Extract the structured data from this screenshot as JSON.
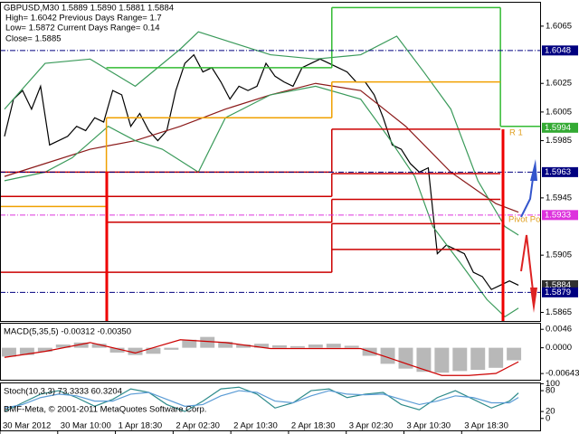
{
  "chart_data": [
    {
      "type": "line",
      "title": "GBPUSD,M30  1.5889 1.5890 1.5881 1.5884",
      "info": [
        "High= 1.6042   Previous Days Range= 1.7",
        "Low= 1.5872   Current Days Range= 0.14",
        "Close= 1.5885"
      ],
      "annotations": [
        "R 1",
        "Pivot Po"
      ],
      "xlim": [
        0,
        60
      ],
      "ylim": [
        1.5859,
        1.6082
      ],
      "yticks": [
        1.6065,
        1.6025,
        1.6005,
        1.5985,
        1.5945,
        1.5905,
        1.5865
      ],
      "series": [
        {
          "color": "#000000",
          "x": [
            0.5,
            1.5,
            2.5,
            3.5,
            4.5,
            5.5,
            6.5,
            7.5,
            8.5,
            9.5,
            10.5,
            11.5,
            12.5,
            13.5,
            14.5,
            15.5,
            16.5,
            17.5,
            18.5,
            19.5,
            20.5,
            21.5,
            22.5,
            23.5,
            24.5,
            25.5,
            26.5,
            27.5,
            28.5,
            29.5,
            30.5,
            31.5,
            32.5,
            33.5,
            34.5,
            35.5,
            36.5,
            37.5,
            38.5,
            39.5,
            40.5,
            41.5,
            42.5,
            43.5,
            44.5,
            45.5,
            46.5,
            47.5,
            48.5,
            49.5,
            50.5,
            51.5,
            52.5,
            53.5,
            54.5,
            55.5,
            56.5,
            57.5
          ],
          "values": [
            1.5988,
            1.6014,
            1.602,
            1.6007,
            1.6023,
            1.5982,
            1.5985,
            1.5988,
            1.5995,
            1.5992,
            1.6001,
            1.5998,
            1.602,
            1.6017,
            1.5995,
            1.6004,
            1.5992,
            1.5985,
            1.5992,
            1.602,
            1.6039,
            1.6045,
            1.6033,
            1.6036,
            1.6026,
            1.6014,
            1.6023,
            1.602,
            1.6023,
            1.6039,
            1.603,
            1.6026,
            1.6023,
            1.6036,
            1.6039,
            1.6042,
            1.6039,
            1.6036,
            1.6033,
            1.6026,
            1.6026,
            1.6017,
            1.6001,
            1.5982,
            1.5979,
            1.5969,
            1.5963,
            1.5966,
            1.5906,
            1.5912,
            1.5909,
            1.5906,
            1.5893,
            1.589,
            1.5881,
            1.5884,
            1.5887,
            1.5884
          ]
        },
        {
          "color": "#8b1a1a",
          "x": [
            0.5,
            5,
            10,
            15,
            20,
            25,
            30,
            35,
            40,
            45,
            50,
            55,
            57.5
          ],
          "values": [
            1.596,
            1.5969,
            1.5979,
            1.5985,
            1.5995,
            1.6007,
            1.6017,
            1.6025,
            1.602,
            1.5995,
            1.5963,
            1.5941,
            1.5935
          ]
        },
        {
          "color": "#3a9a5a",
          "x": [
            0.5,
            5,
            10,
            15,
            20,
            22,
            25,
            30,
            35,
            40,
            44,
            47,
            50,
            53,
            56,
            57.5
          ],
          "values": [
            1.6007,
            1.6039,
            1.6042,
            1.6023,
            1.6049,
            1.6061,
            1.6055,
            1.6045,
            1.6042,
            1.6045,
            1.6058,
            1.6033,
            1.6007,
            1.5957,
            1.5925,
            1.5919
          ]
        },
        {
          "color": "#3a9a5a",
          "x": [
            0.5,
            5,
            8,
            12,
            15,
            18,
            22,
            25,
            30,
            35,
            40,
            43,
            46,
            48,
            51,
            54,
            56,
            57.5
          ],
          "values": [
            1.5957,
            1.5963,
            1.5973,
            1.5995,
            1.5985,
            1.5979,
            1.5963,
            1.6001,
            1.6017,
            1.6023,
            1.6014,
            1.5988,
            1.596,
            1.5925,
            1.59,
            1.5874,
            1.5862,
            1.5868
          ]
        },
        {
          "step": true,
          "color": "#33bb33",
          "x": [
            0,
            11.8,
            36.8,
            55.5
          ],
          "values": [
            null,
            1.6036,
            1.6078,
            1.5995
          ]
        },
        {
          "step": true,
          "color": "#f0a000",
          "x": [
            0,
            11.8,
            36.8,
            55.5
          ],
          "values": [
            1.5939,
            1.6001,
            1.6026,
            null
          ]
        },
        {
          "step": true,
          "color": "#cc0000",
          "x": [
            0,
            11.8,
            36.8,
            55.5
          ],
          "values": [
            1.5963,
            1.5963,
            1.5993,
            null
          ]
        },
        {
          "step": true,
          "color": "#cc0000",
          "x": [
            0,
            11.8,
            36.8,
            55.5
          ],
          "values": [
            1.5946,
            1.5946,
            1.5962,
            null
          ]
        },
        {
          "step": true,
          "color": "#cc0000",
          "x": [
            0,
            11.8,
            36.8,
            55.5
          ],
          "values": [
            null,
            1.5928,
            1.5944,
            null
          ]
        },
        {
          "step": true,
          "color": "#cc0000",
          "x": [
            0,
            11.8,
            36.8,
            55.5
          ],
          "values": [
            1.5893,
            1.5893,
            1.5927,
            null
          ]
        },
        {
          "step": true,
          "color": "#cc0000",
          "x": [
            0,
            11.8,
            36.8,
            55.5
          ],
          "values": [
            null,
            null,
            1.5909,
            null
          ]
        }
      ],
      "price_labels": [
        {
          "value": 1.6048,
          "color": "#000080",
          "line": true
        },
        {
          "value": 1.5994,
          "color": "#33aa33",
          "line": false
        },
        {
          "value": 1.5963,
          "color": "#000080",
          "line": true
        },
        {
          "value": 1.5933,
          "color": "#dd33dd",
          "line": true
        },
        {
          "value": 1.5884,
          "color": "#303030",
          "line": false
        },
        {
          "value": 1.5879,
          "color": "#000080",
          "line": true
        }
      ]
    },
    {
      "type": "bar",
      "title": "MACD(5,35,5) -0.00312 -0.00350",
      "xlim": [
        0,
        60
      ],
      "ylim": [
        -0.0082,
        0.006
      ],
      "yticks": [
        0.0046,
        {
          "value": 0,
          "label": "0.0000"
        },
        -0.00643
      ],
      "series": [
        {
          "type": "bar",
          "color": "#b8b8b8",
          "x": [
            1,
            3,
            5,
            7,
            9,
            11,
            13,
            15,
            17,
            19,
            21,
            23,
            25,
            27,
            29,
            31,
            33,
            35,
            37,
            39,
            41,
            43,
            45,
            47,
            49,
            51,
            53,
            55,
            57
          ],
          "values": [
            -0.0022,
            -0.0018,
            -0.001,
            0.0008,
            0.0013,
            0.001,
            -0.0012,
            -0.0018,
            -0.0015,
            -0.0005,
            0.002,
            0.0027,
            0.0015,
            0.0008,
            0.001,
            0.0006,
            0.0004,
            0.0008,
            0.001,
            0.0005,
            -0.002,
            -0.004,
            -0.0052,
            -0.006,
            -0.0062,
            -0.0058,
            -0.0055,
            -0.005,
            -0.00312
          ]
        },
        {
          "type": "line",
          "color": "#cc0000",
          "x": [
            0.5,
            5,
            10,
            15,
            20,
            25,
            30,
            35,
            40,
            43,
            46,
            49,
            52,
            55,
            57.5
          ],
          "values": [
            -0.0024,
            -0.0009,
            0.0013,
            -0.0013,
            0.002,
            0.0013,
            -0.0002,
            -0.0002,
            -0.0002,
            -0.0024,
            -0.0047,
            -0.0069,
            -0.0069,
            -0.0064,
            -0.0035
          ]
        }
      ]
    },
    {
      "type": "line",
      "title": "Stoch(10,3,3) 73.3333 60.3204",
      "xlim": [
        0,
        60
      ],
      "ylim": [
        -37,
        101
      ],
      "yticks": [
        100,
        80,
        20,
        0
      ],
      "xticks": [
        {
          "value": 0,
          "label": "30 Mar 2012"
        },
        {
          "value": 6.4,
          "label": "30 Mar 10:00"
        },
        {
          "value": 12.8,
          "label": "1 Apr 18:30"
        },
        {
          "value": 19.2,
          "label": "2 Apr 02:30"
        },
        {
          "value": 25.6,
          "label": "2 Apr 10:30"
        },
        {
          "value": 32,
          "label": "2 Apr 18:30"
        },
        {
          "value": 38.4,
          "label": "3 Apr 02:30"
        },
        {
          "value": 44.8,
          "label": "3 Apr 10:30"
        },
        {
          "value": 51.2,
          "label": "3 Apr 18:30"
        }
      ],
      "series": [
        {
          "color": "#2e8b8b",
          "x": [
            0.5,
            2.5,
            4.5,
            6.5,
            8.5,
            10.5,
            12.5,
            14.5,
            16.5,
            18.5,
            20.5,
            22.5,
            24.5,
            26.5,
            28.5,
            30.5,
            32.5,
            34.5,
            36.5,
            38.5,
            40.5,
            42.5,
            44.5,
            46.5,
            48.5,
            50.5,
            52.5,
            54.5,
            56.5,
            57.5
          ],
          "values": [
            20,
            45,
            70,
            80,
            60,
            35,
            55,
            85,
            75,
            40,
            20,
            50,
            85,
            90,
            70,
            30,
            45,
            80,
            85,
            60,
            70,
            75,
            40,
            25,
            60,
            80,
            55,
            30,
            50,
            73.3333
          ]
        },
        {
          "color": "#5a9bd5",
          "x": [
            0.5,
            2.5,
            4.5,
            6.5,
            8.5,
            10.5,
            12.5,
            14.5,
            16.5,
            18.5,
            20.5,
            22.5,
            24.5,
            26.5,
            28.5,
            30.5,
            32.5,
            34.5,
            36.5,
            38.5,
            40.5,
            42.5,
            44.5,
            46.5,
            48.5,
            50.5,
            52.5,
            54.5,
            56.5,
            57.5
          ],
          "values": [
            30,
            40,
            60,
            70,
            65,
            50,
            50,
            70,
            75,
            55,
            35,
            40,
            65,
            80,
            75,
            50,
            45,
            65,
            80,
            70,
            68,
            70,
            55,
            40,
            50,
            65,
            60,
            45,
            45,
            60.3204
          ]
        }
      ]
    }
  ],
  "footer": "BMF-Meta, © 2001-2011 MetaQuotes Software Corp."
}
